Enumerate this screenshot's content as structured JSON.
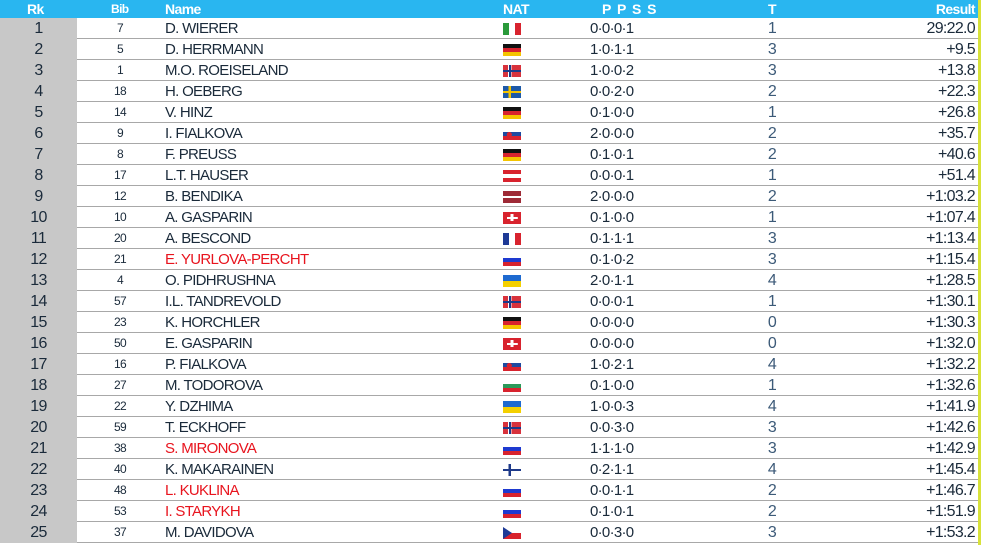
{
  "header": {
    "rk": "Rk",
    "bib": "Bib",
    "name": "Name",
    "nat": "NAT",
    "ppss": "P P S S",
    "t": "T",
    "result": "Result"
  },
  "colors": {
    "header": "#29b6f0",
    "rank_column": "#c8c8c8",
    "highlight_name": "#e8141e"
  },
  "rows": [
    {
      "rk": "1",
      "bib": "7",
      "name": "D. WIERER",
      "flag": "ITA",
      "ppss": "0·0·0·1",
      "t": "1",
      "result": "29:22.0",
      "red": false
    },
    {
      "rk": "2",
      "bib": "5",
      "name": "D. HERRMANN",
      "flag": "GER",
      "ppss": "1·0·1·1",
      "t": "3",
      "result": "+9.5",
      "red": false
    },
    {
      "rk": "3",
      "bib": "1",
      "name": "M.O. ROEISELAND",
      "flag": "NOR",
      "ppss": "1·0·0·2",
      "t": "3",
      "result": "+13.8",
      "red": false
    },
    {
      "rk": "4",
      "bib": "18",
      "name": "H. OEBERG",
      "flag": "SWE",
      "ppss": "0·0·2·0",
      "t": "2",
      "result": "+22.3",
      "red": false
    },
    {
      "rk": "5",
      "bib": "14",
      "name": "V. HINZ",
      "flag": "GER",
      "ppss": "0·1·0·0",
      "t": "1",
      "result": "+26.8",
      "red": false
    },
    {
      "rk": "6",
      "bib": "9",
      "name": "I. FIALKOVA",
      "flag": "SVK",
      "ppss": "2·0·0·0",
      "t": "2",
      "result": "+35.7",
      "red": false
    },
    {
      "rk": "7",
      "bib": "8",
      "name": "F. PREUSS",
      "flag": "GER",
      "ppss": "0·1·0·1",
      "t": "2",
      "result": "+40.6",
      "red": false
    },
    {
      "rk": "8",
      "bib": "17",
      "name": "L.T. HAUSER",
      "flag": "AUT",
      "ppss": "0·0·0·1",
      "t": "1",
      "result": "+51.4",
      "red": false
    },
    {
      "rk": "9",
      "bib": "12",
      "name": "B. BENDIKA",
      "flag": "LAT",
      "ppss": "2·0·0·0",
      "t": "2",
      "result": "+1:03.2",
      "red": false
    },
    {
      "rk": "10",
      "bib": "10",
      "name": "A. GASPARIN",
      "flag": "SUI",
      "ppss": "0·1·0·0",
      "t": "1",
      "result": "+1:07.4",
      "red": false
    },
    {
      "rk": "11",
      "bib": "20",
      "name": "A. BESCOND",
      "flag": "FRA",
      "ppss": "0·1·1·1",
      "t": "3",
      "result": "+1:13.4",
      "red": false
    },
    {
      "rk": "12",
      "bib": "21",
      "name": "E. YURLOVA-PERCHT",
      "flag": "RUS",
      "ppss": "0·1·0·2",
      "t": "3",
      "result": "+1:15.4",
      "red": true
    },
    {
      "rk": "13",
      "bib": "4",
      "name": "O. PIDHRUSHNA",
      "flag": "UKR",
      "ppss": "2·0·1·1",
      "t": "4",
      "result": "+1:28.5",
      "red": false
    },
    {
      "rk": "14",
      "bib": "57",
      "name": "I.L. TANDREVOLD",
      "flag": "NOR",
      "ppss": "0·0·0·1",
      "t": "1",
      "result": "+1:30.1",
      "red": false
    },
    {
      "rk": "15",
      "bib": "23",
      "name": "K. HORCHLER",
      "flag": "GER",
      "ppss": "0·0·0·0",
      "t": "0",
      "result": "+1:30.3",
      "red": false
    },
    {
      "rk": "16",
      "bib": "50",
      "name": "E. GASPARIN",
      "flag": "SUI",
      "ppss": "0·0·0·0",
      "t": "0",
      "result": "+1:32.0",
      "red": false
    },
    {
      "rk": "17",
      "bib": "16",
      "name": "P. FIALKOVA",
      "flag": "SVK",
      "ppss": "1·0·2·1",
      "t": "4",
      "result": "+1:32.2",
      "red": false
    },
    {
      "rk": "18",
      "bib": "27",
      "name": "M. TODOROVA",
      "flag": "BUL",
      "ppss": "0·1·0·0",
      "t": "1",
      "result": "+1:32.6",
      "red": false
    },
    {
      "rk": "19",
      "bib": "22",
      "name": "Y. DZHIMA",
      "flag": "UKR",
      "ppss": "1·0·0·3",
      "t": "4",
      "result": "+1:41.9",
      "red": false
    },
    {
      "rk": "20",
      "bib": "59",
      "name": "T. ECKHOFF",
      "flag": "NOR",
      "ppss": "0·0·3·0",
      "t": "3",
      "result": "+1:42.6",
      "red": false
    },
    {
      "rk": "21",
      "bib": "38",
      "name": "S. MIRONOVA",
      "flag": "RUS",
      "ppss": "1·1·1·0",
      "t": "3",
      "result": "+1:42.9",
      "red": true
    },
    {
      "rk": "22",
      "bib": "40",
      "name": "K. MAKARAINEN",
      "flag": "FIN",
      "ppss": "0·2·1·1",
      "t": "4",
      "result": "+1:45.4",
      "red": false
    },
    {
      "rk": "23",
      "bib": "48",
      "name": "L. KUKLINA",
      "flag": "RUS",
      "ppss": "0·0·1·1",
      "t": "2",
      "result": "+1:46.7",
      "red": true
    },
    {
      "rk": "24",
      "bib": "53",
      "name": "I. STARYKH",
      "flag": "RUS",
      "ppss": "0·1·0·1",
      "t": "2",
      "result": "+1:51.9",
      "red": true
    },
    {
      "rk": "25",
      "bib": "37",
      "name": "M. DAVIDOVA",
      "flag": "CZE",
      "ppss": "0·0·3·0",
      "t": "3",
      "result": "+1:53.2",
      "red": false
    }
  ]
}
